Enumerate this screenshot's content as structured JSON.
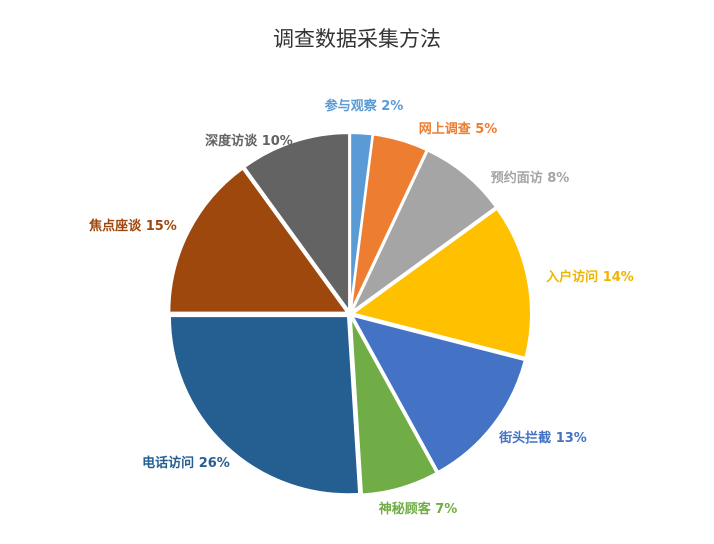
{
  "chart_data": {
    "type": "pie",
    "title": "调查数据采集方法",
    "start": "top",
    "direction": "clockwise",
    "slices": [
      {
        "label": "参与观察",
        "value": 2,
        "display": "参与观察 2%",
        "color": "#5B9BD5"
      },
      {
        "label": "网上调查",
        "value": 5,
        "display": "网上调查 5%",
        "color": "#ED7D31"
      },
      {
        "label": "预约面访",
        "value": 8,
        "display": "预约面访 8%",
        "color": "#A5A5A5"
      },
      {
        "label": "入户访问",
        "value": 14,
        "display": "入户访问 14%",
        "color": "#FFC000"
      },
      {
        "label": "街头拦截",
        "value": 13,
        "display": "街头拦截 13%",
        "color": "#4472C4"
      },
      {
        "label": "神秘顾客",
        "value": 7,
        "display": "神秘顾客 7%",
        "color": "#70AD47"
      },
      {
        "label": "电话访问",
        "value": 26,
        "display": "电话访问 26%",
        "color": "#255E91"
      },
      {
        "label": "焦点座谈",
        "value": 15,
        "display": "焦点座谈 15%",
        "color": "#9E480E"
      },
      {
        "label": "深度访谈",
        "value": 10,
        "display": "深度访谈 10%",
        "color": "#636363"
      }
    ]
  }
}
